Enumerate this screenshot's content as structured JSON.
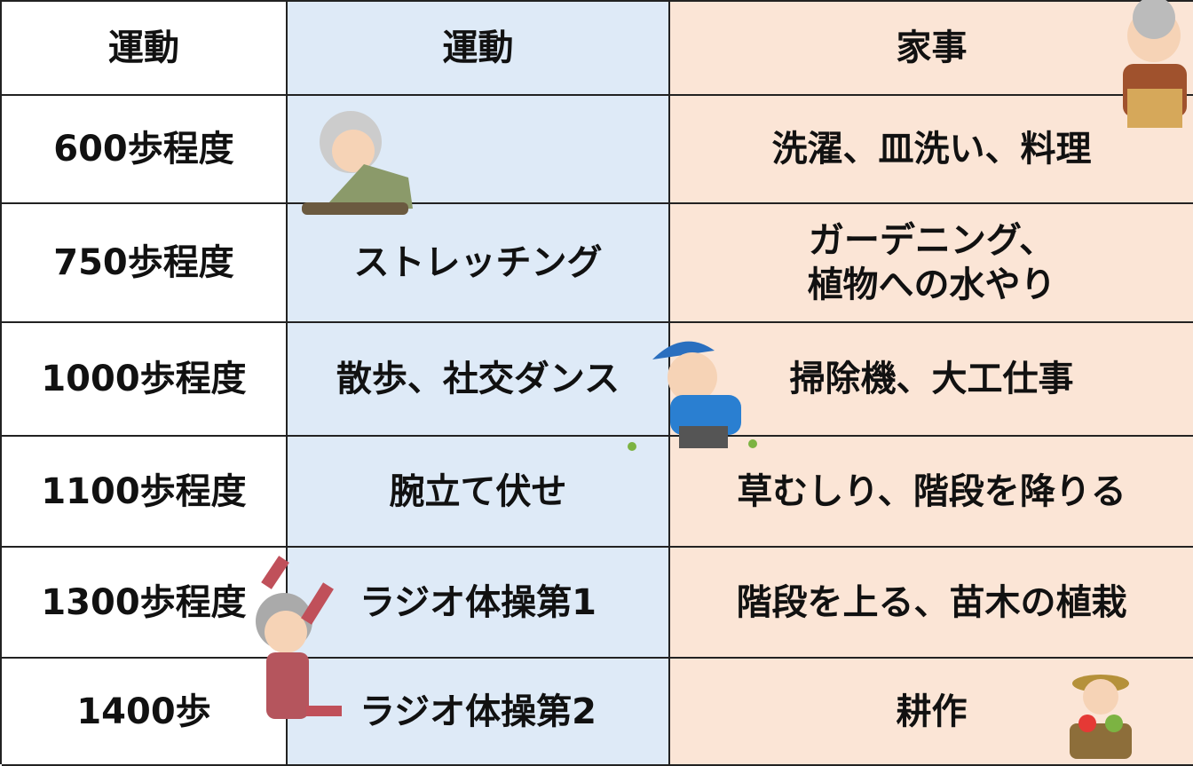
{
  "table": {
    "header": [
      "運動",
      "運動",
      "家事"
    ],
    "rows": [
      [
        "600歩程度",
        null,
        "洗濯、皿洗い、料理"
      ],
      [
        "750歩程度",
        "ストレッチング",
        "ガーデニング、\n植物への水やり"
      ],
      [
        "1000歩程度",
        "散歩、社交ダンス",
        "掃除機、大工仕事"
      ],
      [
        "1100歩程度",
        "腕立て伏せ",
        "草むしり、階段を降りる"
      ],
      [
        "1300歩程度",
        "ラジオ体操第1",
        "階段を上る、苗木の植栽"
      ],
      [
        "1400歩",
        "ラジオ体操第2",
        "耕作"
      ]
    ]
  }
}
